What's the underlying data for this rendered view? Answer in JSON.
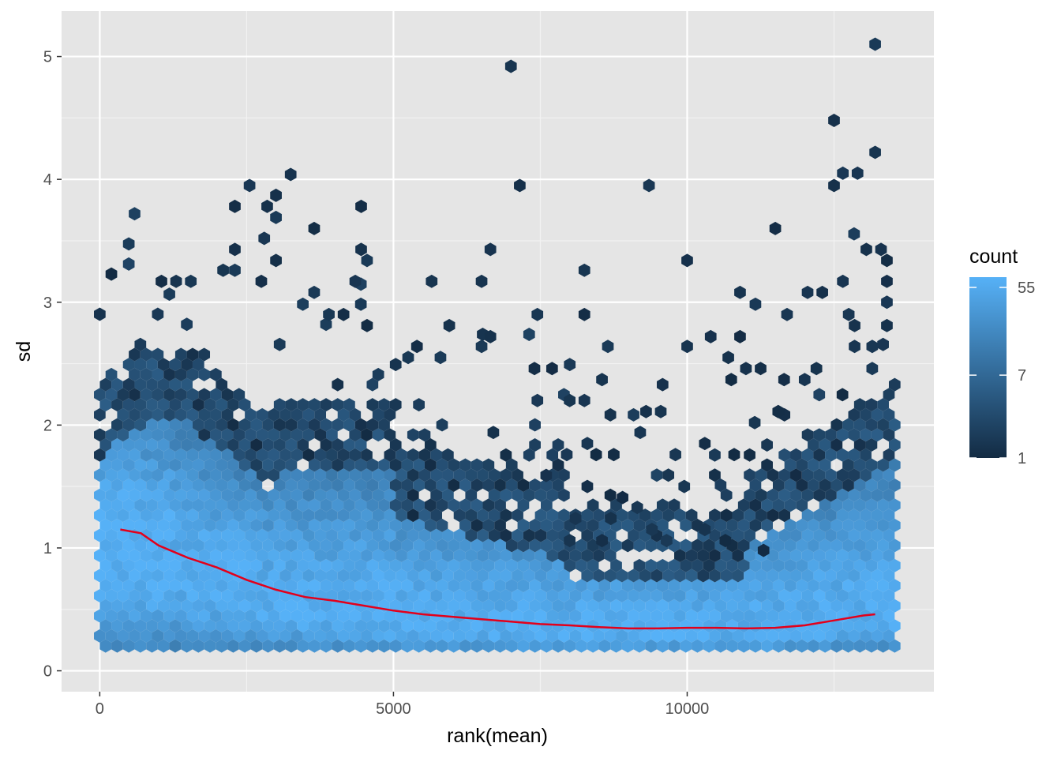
{
  "chart_data": {
    "type": "hexbin",
    "xlabel": "rank(mean)",
    "ylabel": "sd",
    "xlim": [
      -650,
      14200
    ],
    "ylim": [
      -0.17,
      5.37
    ],
    "x_ticks": [
      0,
      5000,
      10000
    ],
    "x_tick_labels": [
      "0",
      "5000",
      "10000"
    ],
    "y_ticks": [
      0,
      1,
      2,
      3,
      4,
      5
    ],
    "y_tick_labels": [
      "0",
      "1",
      "2",
      "3",
      "4",
      "5"
    ],
    "grid": true,
    "background_color": "#e5e5e5",
    "legend": {
      "title": "count",
      "placement": "right",
      "scale": "log",
      "breaks": [
        55,
        7,
        1
      ],
      "break_labels": [
        "55",
        "7",
        "1"
      ],
      "color_low": "#132b43",
      "color_high": "#56b1f7",
      "count_range": [
        1,
        70
      ]
    },
    "trend_line": {
      "color": "#e3001b",
      "x": [
        350,
        700,
        1000,
        1500,
        2000,
        2500,
        3000,
        3500,
        4000,
        4500,
        5000,
        5500,
        6000,
        6500,
        7000,
        7500,
        8000,
        8500,
        9000,
        9500,
        10000,
        10500,
        11000,
        11500,
        12000,
        12500,
        13000,
        13200
      ],
      "y": [
        1.15,
        1.12,
        1.02,
        0.92,
        0.84,
        0.74,
        0.66,
        0.6,
        0.57,
        0.53,
        0.49,
        0.46,
        0.44,
        0.42,
        0.4,
        0.38,
        0.37,
        0.355,
        0.345,
        0.345,
        0.35,
        0.35,
        0.345,
        0.35,
        0.37,
        0.41,
        0.45,
        0.46
      ]
    },
    "bins": {
      "x_range": [
        0,
        13600
      ],
      "hex_width": 250,
      "dense_cells": [
        [
          150,
          1.05
        ],
        [
          400,
          1.0
        ],
        [
          600,
          0.95
        ],
        [
          850,
          0.85
        ],
        [
          1100,
          0.8
        ],
        [
          1400,
          0.75
        ],
        [
          1650,
          0.7
        ],
        [
          1900,
          0.65
        ],
        [
          2150,
          0.62
        ],
        [
          2400,
          0.6
        ],
        [
          2650,
          0.55
        ],
        [
          2900,
          0.5
        ],
        [
          3400,
          0.45
        ],
        [
          3900,
          0.42
        ],
        [
          4400,
          0.4
        ],
        [
          4900,
          0.38
        ],
        [
          5400,
          0.36
        ],
        [
          5900,
          0.35
        ],
        [
          6400,
          0.34
        ],
        [
          6900,
          0.33
        ],
        [
          7400,
          0.32
        ],
        [
          7900,
          0.31
        ],
        [
          8400,
          0.3
        ],
        [
          8900,
          0.3
        ],
        [
          9400,
          0.3
        ],
        [
          9900,
          0.3
        ],
        [
          10400,
          0.3
        ],
        [
          10900,
          0.3
        ],
        [
          11400,
          0.3
        ],
        [
          11900,
          0.32
        ],
        [
          12400,
          0.35
        ],
        [
          12900,
          0.4
        ],
        [
          13350,
          0.45
        ]
      ],
      "outliers": [
        [
          7000,
          4.92
        ],
        [
          13200,
          5.1
        ],
        [
          12500,
          4.48
        ],
        [
          13200,
          4.22
        ],
        [
          12650,
          4.05
        ],
        [
          12900,
          4.05
        ],
        [
          12500,
          3.95
        ],
        [
          3250,
          4.04
        ],
        [
          2550,
          3.95
        ],
        [
          3000,
          3.87
        ],
        [
          2850,
          3.78
        ],
        [
          2300,
          3.78
        ],
        [
          3000,
          3.69
        ],
        [
          4450,
          3.78
        ],
        [
          7150,
          3.95
        ],
        [
          9350,
          3.95
        ],
        [
          11500,
          3.6
        ],
        [
          3650,
          3.6
        ],
        [
          2800,
          3.52
        ],
        [
          2300,
          3.43
        ],
        [
          4450,
          3.43
        ],
        [
          4550,
          3.34
        ],
        [
          3000,
          3.34
        ],
        [
          6650,
          3.43
        ],
        [
          10000,
          3.34
        ],
        [
          13050,
          3.43
        ],
        [
          13300,
          3.43
        ],
        [
          13400,
          3.34
        ],
        [
          2100,
          3.26
        ],
        [
          2300,
          3.26
        ],
        [
          8250,
          3.26
        ],
        [
          1050,
          3.17
        ],
        [
          1300,
          3.17
        ],
        [
          1550,
          3.17
        ],
        [
          2750,
          3.17
        ],
        [
          4350,
          3.17
        ],
        [
          5650,
          3.17
        ],
        [
          6500,
          3.17
        ],
        [
          12650,
          3.17
        ],
        [
          13400,
          3.17
        ],
        [
          3650,
          3.08
        ],
        [
          10900,
          3.08
        ],
        [
          12050,
          3.08
        ],
        [
          12300,
          3.08
        ],
        [
          13400,
          3.0
        ],
        [
          7450,
          2.9
        ],
        [
          8250,
          2.9
        ],
        [
          11700,
          2.9
        ],
        [
          12750,
          2.9
        ],
        [
          3900,
          2.9
        ],
        [
          4150,
          2.9
        ],
        [
          4550,
          2.81
        ],
        [
          5950,
          2.81
        ],
        [
          12850,
          2.81
        ],
        [
          13400,
          2.81
        ],
        [
          10400,
          2.72
        ],
        [
          10900,
          2.72
        ],
        [
          6650,
          2.72
        ],
        [
          8650,
          2.64
        ],
        [
          10000,
          2.64
        ],
        [
          12850,
          2.64
        ],
        [
          13150,
          2.64
        ],
        [
          5400,
          2.64
        ],
        [
          6500,
          2.64
        ],
        [
          5250,
          2.55
        ],
        [
          5800,
          2.55
        ],
        [
          10700,
          2.55
        ],
        [
          7400,
          2.46
        ],
        [
          7700,
          2.46
        ],
        [
          11000,
          2.46
        ],
        [
          11250,
          2.46
        ],
        [
          12200,
          2.46
        ],
        [
          13150,
          2.46
        ],
        [
          8550,
          2.37
        ],
        [
          10750,
          2.37
        ],
        [
          11650,
          2.37
        ],
        [
          12000,
          2.37
        ],
        [
          7450,
          2.2
        ],
        [
          8000,
          2.2
        ],
        [
          8250,
          2.2
        ],
        [
          9300,
          2.11
        ],
        [
          9550,
          2.11
        ],
        [
          11150,
          2.02
        ],
        [
          11550,
          2.11
        ],
        [
          6700,
          1.94
        ],
        [
          9200,
          1.94
        ],
        [
          8300,
          1.85
        ],
        [
          10300,
          1.85
        ],
        [
          8450,
          1.76
        ],
        [
          8750,
          1.76
        ],
        [
          7950,
          1.76
        ],
        [
          9800,
          1.76
        ],
        [
          10800,
          1.76
        ],
        [
          7600,
          1.59
        ],
        [
          8300,
          1.5
        ],
        [
          9950,
          1.5
        ],
        [
          8900,
          1.41
        ],
        [
          9150,
          1.33
        ],
        [
          8100,
          1.24
        ],
        [
          8700,
          1.24
        ],
        [
          9400,
          1.15
        ],
        [
          10300,
          1.15
        ],
        [
          8000,
          1.06
        ],
        [
          8550,
          1.06
        ],
        [
          9650,
          1.06
        ],
        [
          10650,
          1.06
        ],
        [
          11300,
          0.98
        ]
      ]
    }
  }
}
